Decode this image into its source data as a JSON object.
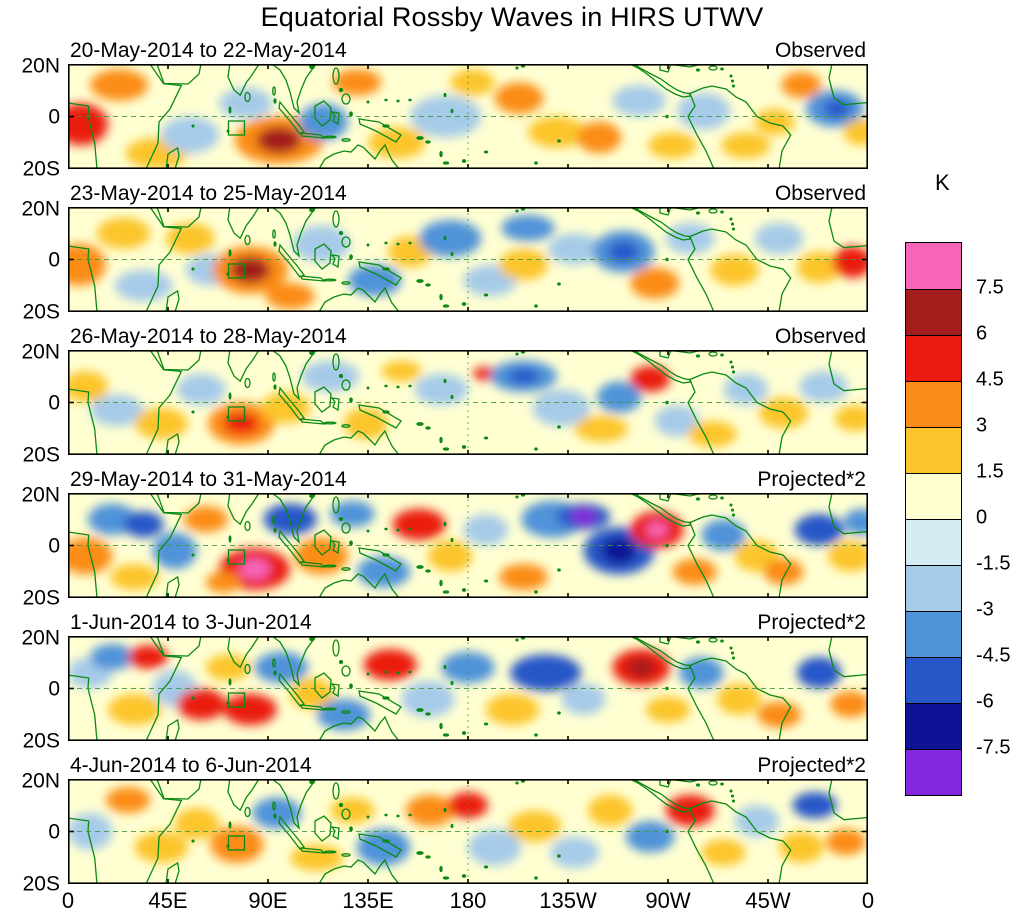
{
  "chart_data": {
    "type": "heatmap",
    "title": "Equatorial Rossby Waves in HIRS UTWV",
    "x_axis": {
      "tick_labels": [
        "0",
        "45E",
        "90E",
        "135E",
        "180",
        "135W",
        "90W",
        "45W",
        "0"
      ],
      "lon_range": [
        0,
        360
      ]
    },
    "y_axis": {
      "tick_labels": [
        "20N",
        "0",
        "20S"
      ],
      "lat_range": [
        -20,
        20
      ]
    },
    "colorbar": {
      "unit": "K",
      "tick_labels": [
        "7.5",
        "6",
        "4.5",
        "3",
        "1.5",
        "0",
        "-1.5",
        "-3",
        "-4.5",
        "-6",
        "-7.5"
      ],
      "colors_top_to_bottom": [
        "#f765b8",
        "#a31d1d",
        "#ea1a10",
        "#fb8c17",
        "#fcc52b",
        "#ffffd2",
        "#d4ecf4",
        "#a6cbe9",
        "#4f93d9",
        "#2857c8",
        "#101295",
        "#8428dd"
      ]
    },
    "map_colors": {
      "background_band_0_to_1.5": "#ffffd2",
      "coastline_green": "#0a8a14"
    },
    "anomaly_format": "[lon_deg_east, lat_deg, peak_value_K, radius_lon_deg, radius_lat_deg]",
    "panels": [
      {
        "date_range": "20-May-2014 to 22-May-2014",
        "label": "Observed",
        "anomalies": [
          [
            6,
            -3,
            4.5,
            12,
            8
          ],
          [
            23,
            12,
            3,
            13,
            6
          ],
          [
            40,
            -14,
            1.5,
            14,
            6
          ],
          [
            55,
            -7,
            -1.5,
            13,
            7
          ],
          [
            80,
            5,
            -1.5,
            12,
            6
          ],
          [
            95,
            -9,
            3,
            20,
            9
          ],
          [
            95,
            -9,
            6,
            10,
            5
          ],
          [
            115,
            -2,
            -3,
            11,
            7
          ],
          [
            130,
            13,
            3,
            11,
            5
          ],
          [
            148,
            -10,
            1.5,
            13,
            6
          ],
          [
            170,
            0,
            -1.5,
            16,
            8
          ],
          [
            182,
            13,
            1.5,
            10,
            5
          ],
          [
            203,
            7,
            3,
            11,
            6
          ],
          [
            220,
            -6,
            1.5,
            13,
            6
          ],
          [
            239,
            -8,
            3,
            10,
            6
          ],
          [
            257,
            6,
            -1.5,
            12,
            6
          ],
          [
            272,
            -11,
            1.5,
            11,
            5
          ],
          [
            286,
            2,
            -1.5,
            12,
            7
          ],
          [
            305,
            -11,
            1.5,
            11,
            5
          ],
          [
            318,
            -2,
            1.5,
            9,
            5
          ],
          [
            330,
            12,
            3,
            9,
            5
          ],
          [
            345,
            3,
            -3,
            13,
            7
          ],
          [
            346,
            3,
            -4.5,
            6,
            3.5
          ],
          [
            357,
            -6,
            1.5,
            8,
            5
          ]
        ]
      },
      {
        "date_range": "23-May-2014 to 25-May-2014",
        "label": "Observed",
        "anomalies": [
          [
            5,
            -2,
            3,
            12,
            8
          ],
          [
            25,
            10,
            1.5,
            12,
            6
          ],
          [
            34,
            -10,
            -1.5,
            13,
            6
          ],
          [
            55,
            8,
            1.5,
            11,
            6
          ],
          [
            64,
            -4,
            -1.5,
            11,
            6
          ],
          [
            82,
            -4,
            3,
            17,
            9
          ],
          [
            82,
            -4,
            6,
            9,
            5
          ],
          [
            100,
            -14,
            3,
            11,
            5
          ],
          [
            114,
            6,
            -1.5,
            13,
            7
          ],
          [
            138,
            -8,
            -3,
            12,
            6
          ],
          [
            154,
            3,
            1.5,
            10,
            6
          ],
          [
            172,
            8,
            -3,
            14,
            7
          ],
          [
            190,
            -8,
            -1.5,
            12,
            6
          ],
          [
            207,
            12,
            -3,
            12,
            5
          ],
          [
            205,
            -2,
            1.5,
            11,
            6
          ],
          [
            228,
            4,
            -1.5,
            12,
            6
          ],
          [
            250,
            3,
            -3,
            14,
            8
          ],
          [
            250,
            3,
            -4.5,
            7,
            4
          ],
          [
            264,
            -9,
            3,
            11,
            6
          ],
          [
            280,
            8,
            -1.5,
            11,
            6
          ],
          [
            300,
            -4,
            1.5,
            11,
            6
          ],
          [
            320,
            8,
            -1.5,
            11,
            6
          ],
          [
            338,
            -3,
            1.5,
            10,
            6
          ],
          [
            353,
            -1,
            4.5,
            9,
            6
          ]
        ]
      },
      {
        "date_range": "26-May-2014 to 28-May-2014",
        "label": "Observed",
        "anomalies": [
          [
            8,
            6,
            1.5,
            10,
            6
          ],
          [
            22,
            -3,
            -1.5,
            12,
            6
          ],
          [
            42,
            -8,
            1.5,
            12,
            6
          ],
          [
            60,
            5,
            -1.5,
            11,
            6
          ],
          [
            78,
            -8,
            3,
            15,
            8
          ],
          [
            78,
            -8,
            4.5,
            8,
            4
          ],
          [
            98,
            -2,
            1.5,
            11,
            6
          ],
          [
            118,
            10,
            -1.5,
            13,
            6
          ],
          [
            134,
            -8,
            1.5,
            10,
            6
          ],
          [
            150,
            12,
            1.5,
            9,
            4
          ],
          [
            168,
            5,
            -1.5,
            12,
            6
          ],
          [
            188,
            11,
            4.5,
            6,
            2.5
          ],
          [
            205,
            10,
            -3,
            15,
            6
          ],
          [
            205,
            10,
            -4.5,
            7,
            3
          ],
          [
            222,
            -2,
            -1.5,
            13,
            7
          ],
          [
            240,
            -10,
            1.5,
            12,
            5
          ],
          [
            248,
            2,
            -3,
            10,
            6
          ],
          [
            262,
            9,
            4.5,
            9,
            5
          ],
          [
            274,
            -7,
            -1.5,
            10,
            6
          ],
          [
            290,
            -12,
            1.5,
            11,
            5
          ],
          [
            305,
            5,
            -1.5,
            10,
            6
          ],
          [
            322,
            -4,
            1.5,
            11,
            6
          ],
          [
            340,
            6,
            -1.5,
            11,
            6
          ],
          [
            354,
            -6,
            1.5,
            9,
            5
          ]
        ]
      },
      {
        "date_range": "29-May-2014 to 31-May-2014",
        "label": "Projected*2",
        "anomalies": [
          [
            8,
            -4,
            3,
            12,
            7
          ],
          [
            20,
            10,
            -3,
            11,
            6
          ],
          [
            34,
            8,
            -4.5,
            9,
            5
          ],
          [
            30,
            -12,
            1.5,
            11,
            5
          ],
          [
            48,
            -2,
            -3,
            10,
            7
          ],
          [
            62,
            10,
            3,
            10,
            5
          ],
          [
            84,
            -9,
            4.5,
            16,
            8
          ],
          [
            84,
            -9,
            7.5,
            7,
            4
          ],
          [
            70,
            -14,
            3,
            8,
            4
          ],
          [
            100,
            10,
            -4.5,
            12,
            6
          ],
          [
            114,
            -4,
            3,
            12,
            7
          ],
          [
            128,
            12,
            -3,
            10,
            5
          ],
          [
            142,
            -10,
            -3,
            12,
            6
          ],
          [
            158,
            8,
            4.5,
            12,
            6
          ],
          [
            172,
            -4,
            1.5,
            10,
            6
          ],
          [
            188,
            6,
            -1.5,
            10,
            6
          ],
          [
            205,
            -12,
            3,
            11,
            5
          ],
          [
            218,
            10,
            -3,
            14,
            7
          ],
          [
            232,
            11,
            -4.5,
            12,
            5
          ],
          [
            232,
            11,
            -7.5,
            6,
            3
          ],
          [
            248,
            -2,
            -4.5,
            16,
            9
          ],
          [
            248,
            -2,
            -6,
            8,
            5
          ],
          [
            265,
            6,
            4.5,
            12,
            7
          ],
          [
            265,
            6,
            7.5,
            5,
            3
          ],
          [
            282,
            -10,
            3,
            10,
            5
          ],
          [
            295,
            4,
            -3,
            10,
            6
          ],
          [
            310,
            -4,
            1.5,
            10,
            6
          ],
          [
            322,
            -10,
            3,
            9,
            5
          ],
          [
            338,
            6,
            -4.5,
            11,
            6
          ],
          [
            352,
            -4,
            1.5,
            10,
            6
          ],
          [
            357,
            9,
            -3,
            8,
            5
          ]
        ]
      },
      {
        "date_range": "1-Jun-2014 to 3-Jun-2014",
        "label": "Projected*2",
        "anomalies": [
          [
            10,
            6,
            -1.5,
            10,
            6
          ],
          [
            20,
            12,
            -3,
            10,
            5
          ],
          [
            36,
            12,
            4.5,
            9,
            4.5
          ],
          [
            30,
            -8,
            1.5,
            12,
            6
          ],
          [
            48,
            0,
            -1.5,
            10,
            7
          ],
          [
            60,
            -6,
            4.5,
            11,
            6
          ],
          [
            82,
            -8,
            4.5,
            12,
            6
          ],
          [
            72,
            8,
            1.5,
            10,
            5
          ],
          [
            96,
            8,
            -3,
            12,
            6
          ],
          [
            110,
            -2,
            1.5,
            10,
            6
          ],
          [
            124,
            -10,
            -3,
            12,
            6
          ],
          [
            145,
            9,
            4.5,
            12,
            6
          ],
          [
            162,
            -4,
            -1.5,
            12,
            7
          ],
          [
            180,
            8,
            -3,
            12,
            6
          ],
          [
            200,
            -8,
            1.5,
            12,
            6
          ],
          [
            215,
            6,
            -4.5,
            16,
            7
          ],
          [
            232,
            -4,
            -1.5,
            10,
            6
          ],
          [
            258,
            8,
            4.5,
            13,
            7
          ],
          [
            258,
            8,
            6,
            6,
            3.5
          ],
          [
            270,
            -8,
            1.5,
            10,
            5
          ],
          [
            285,
            6,
            -3,
            10,
            6
          ],
          [
            302,
            -4,
            1.5,
            10,
            6
          ],
          [
            320,
            -10,
            3,
            10,
            5
          ],
          [
            338,
            6,
            -4.5,
            10,
            6
          ],
          [
            352,
            -6,
            3,
            9,
            5
          ]
        ]
      },
      {
        "date_range": "4-Jun-2014 to 6-Jun-2014",
        "label": "Projected*2",
        "anomalies": [
          [
            10,
            0,
            -1.5,
            10,
            7
          ],
          [
            27,
            12,
            3,
            10,
            5
          ],
          [
            42,
            -6,
            1.5,
            12,
            6
          ],
          [
            58,
            3,
            1.5,
            10,
            6
          ],
          [
            76,
            -5,
            3,
            12,
            7
          ],
          [
            94,
            7,
            -3,
            11,
            6
          ],
          [
            112,
            -10,
            1.5,
            12,
            5
          ],
          [
            128,
            8,
            1.5,
            10,
            5
          ],
          [
            142,
            -6,
            -3,
            12,
            7
          ],
          [
            163,
            8,
            3,
            11,
            6
          ],
          [
            180,
            10,
            4.5,
            9,
            5
          ],
          [
            192,
            -6,
            -1.5,
            12,
            7
          ],
          [
            210,
            2,
            1.5,
            12,
            6
          ],
          [
            228,
            -8,
            -1.5,
            11,
            6
          ],
          [
            244,
            8,
            1.5,
            10,
            6
          ],
          [
            262,
            -2,
            -3,
            11,
            6
          ],
          [
            280,
            8,
            4.5,
            11,
            6
          ],
          [
            295,
            -8,
            1.5,
            10,
            5
          ],
          [
            310,
            4,
            -1.5,
            10,
            6
          ],
          [
            336,
            10,
            -4.5,
            10,
            5
          ],
          [
            330,
            -6,
            1.5,
            10,
            6
          ],
          [
            350,
            -4,
            3,
            9,
            5
          ]
        ]
      }
    ]
  }
}
